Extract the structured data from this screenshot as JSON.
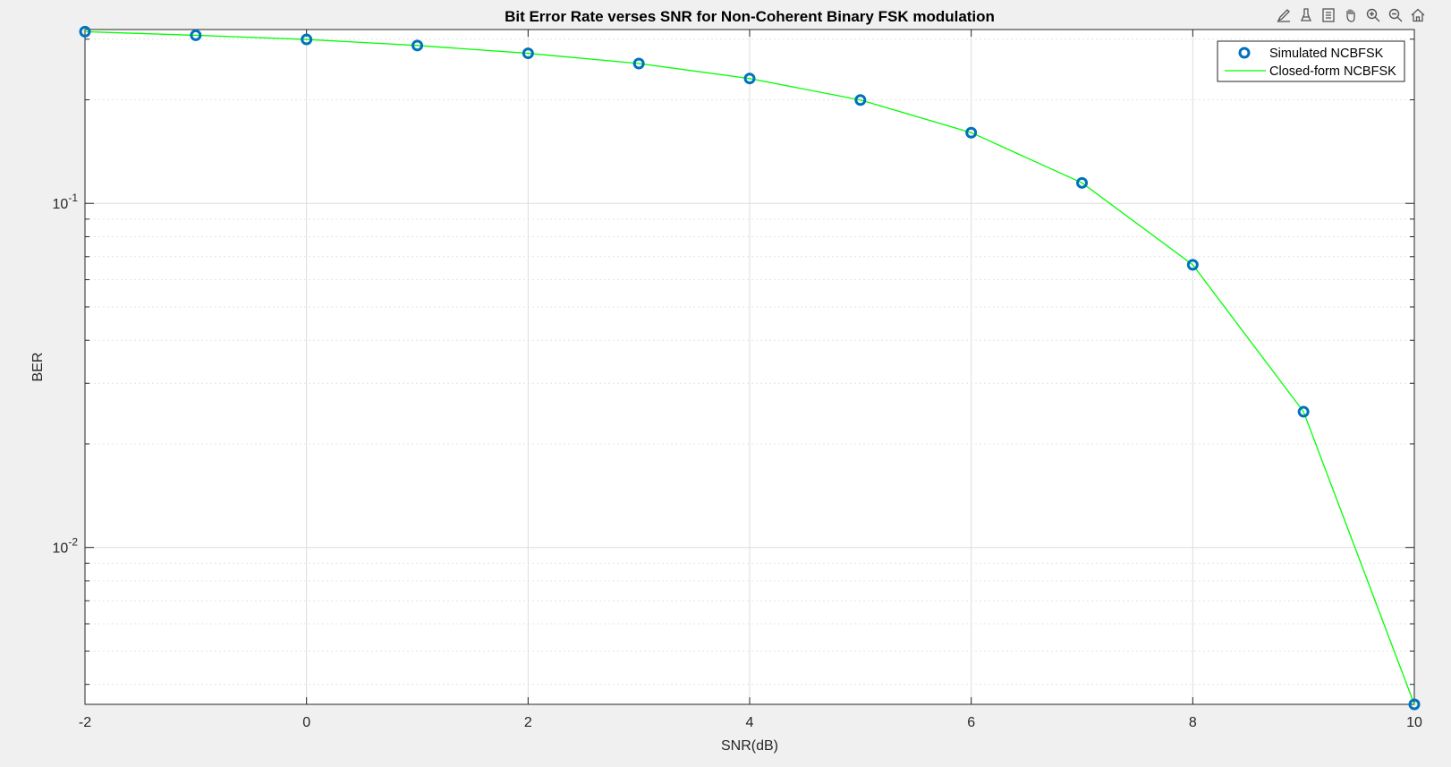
{
  "toolbar": {
    "icons": [
      "brush-icon",
      "data-tips-icon",
      "legend-icon",
      "pan-icon",
      "zoom-in-icon",
      "zoom-out-icon",
      "home-icon"
    ]
  },
  "colors": {
    "background": "#f0f0f0",
    "axes_bg": "#ffffff",
    "grid": "#dddddd",
    "simulated": "#0072BD",
    "closed_form": "#00ff00"
  },
  "chart_data": {
    "type": "line",
    "title": "Bit Error Rate verses SNR for Non-Coherent Binary FSK modulation",
    "xlabel": "SNR(dB)",
    "ylabel": "BER",
    "xlim": [
      -2,
      10
    ],
    "ylim": [
      0.0035,
      0.32
    ],
    "yscale": "log",
    "grid": true,
    "legend_position": "top-right",
    "xticks": [
      -2,
      0,
      2,
      4,
      6,
      8,
      10
    ],
    "xtick_labels": [
      "-2",
      "0",
      "2",
      "4",
      "6",
      "8",
      "10"
    ],
    "yticks": [
      {
        "value": 0.1,
        "base": "10",
        "exp": "-1"
      },
      {
        "value": 0.01,
        "base": "10",
        "exp": "-2"
      }
    ],
    "x": [
      -2,
      -1,
      0,
      1,
      2,
      3,
      4,
      5,
      6,
      7,
      8,
      9,
      10
    ],
    "series": [
      {
        "name": "Simulated NCBFSK",
        "style": "markers",
        "values": [
          0.3155,
          0.3079,
          0.2995,
          0.2876,
          0.2729,
          0.2549,
          0.2306,
          0.1997,
          0.1605,
          0.1147,
          0.0663,
          0.0248,
          0.0035
        ]
      },
      {
        "name": "Closed-form NCBFSK",
        "style": "line",
        "values": [
          0.3155,
          0.3079,
          0.2995,
          0.2876,
          0.2729,
          0.2549,
          0.2306,
          0.1997,
          0.1605,
          0.1147,
          0.0663,
          0.0248,
          0.0035
        ]
      }
    ]
  }
}
